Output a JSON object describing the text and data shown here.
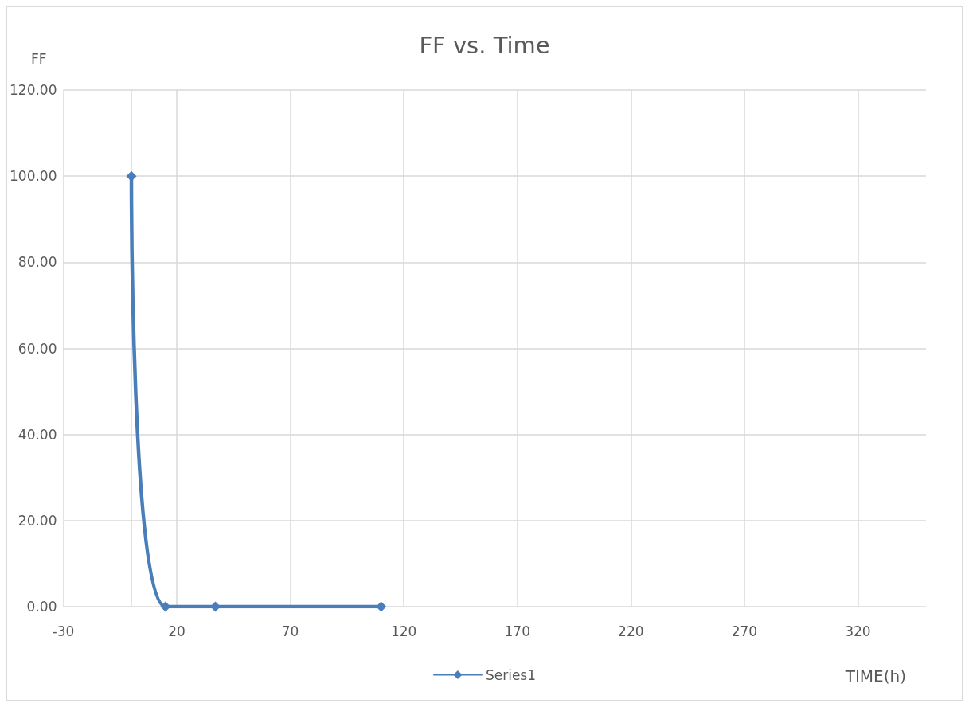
{
  "chart_data": {
    "type": "line",
    "title": "FF vs. Time",
    "xlabel": "TIME(h)",
    "ylabel": "FF",
    "x": [
      0,
      15,
      37,
      110
    ],
    "series": [
      {
        "name": "Series1",
        "color": "#4a7ebb",
        "values": [
          100,
          0,
          0,
          0
        ]
      }
    ],
    "xlim": [
      -30,
      350
    ],
    "xticks": [
      -30,
      20,
      70,
      120,
      170,
      220,
      270,
      320
    ],
    "ylim": [
      0,
      120
    ],
    "yticks": [
      {
        "value": 0,
        "label": "0.00"
      },
      {
        "value": 20,
        "label": "20.00"
      },
      {
        "value": 40,
        "label": "40.00"
      },
      {
        "value": 60,
        "label": "60.00"
      },
      {
        "value": 80,
        "label": "80.00"
      },
      {
        "value": 100,
        "label": "100.00"
      },
      {
        "value": 120,
        "label": "120.00"
      }
    ],
    "grid": true,
    "legend": "bottom",
    "marker": "diamond",
    "line_style": "solid"
  }
}
